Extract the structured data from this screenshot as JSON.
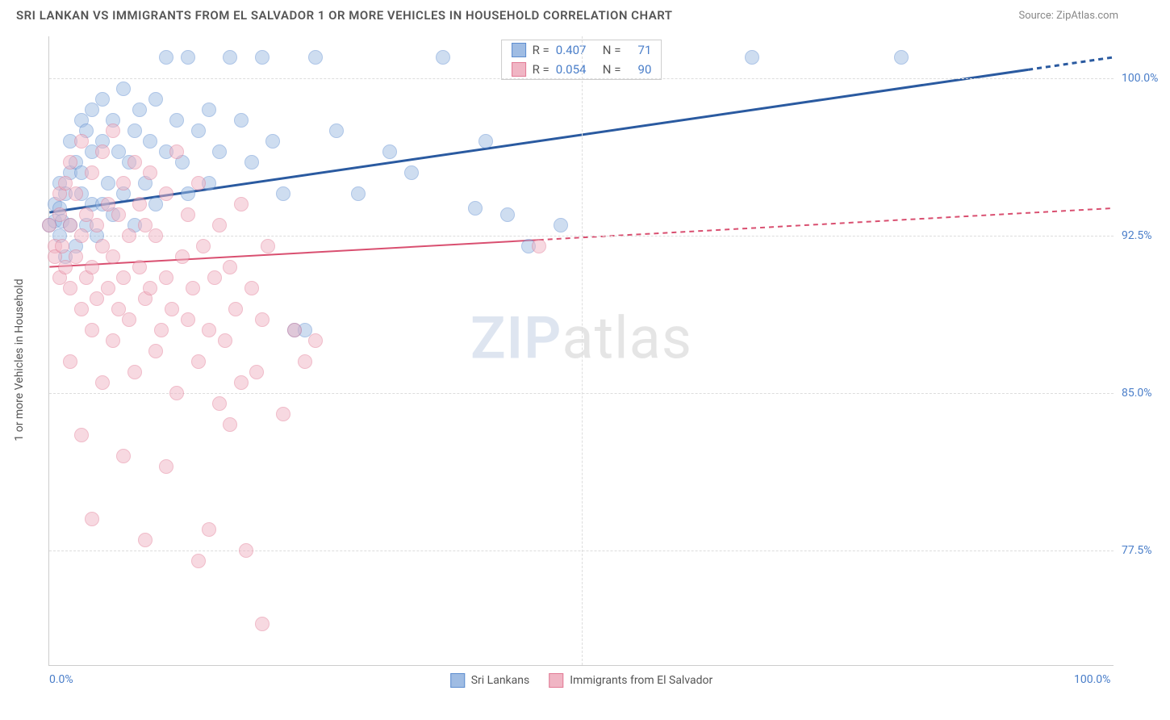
{
  "title": "SRI LANKAN VS IMMIGRANTS FROM EL SALVADOR 1 OR MORE VEHICLES IN HOUSEHOLD CORRELATION CHART",
  "source": "Source: ZipAtlas.com",
  "watermark_a": "ZIP",
  "watermark_b": "atlas",
  "y_axis_title": "1 or more Vehicles in Household",
  "chart": {
    "type": "scatter",
    "xlim": [
      0,
      100
    ],
    "ylim": [
      72,
      102
    ],
    "xticks": [
      {
        "v": 0,
        "label": "0.0%"
      },
      {
        "v": 100,
        "label": "100.0%"
      }
    ],
    "yticks": [
      {
        "v": 77.5,
        "label": "77.5%"
      },
      {
        "v": 85.0,
        "label": "85.0%"
      },
      {
        "v": 92.5,
        "label": "92.5%"
      },
      {
        "v": 100.0,
        "label": "100.0%"
      }
    ],
    "x_gridlines": [
      50
    ],
    "grid_color": "#dddddd",
    "background": "#ffffff",
    "point_radius": 9,
    "point_opacity": 0.5,
    "series": [
      {
        "name": "Sri Lankans",
        "color_fill": "#9fbce3",
        "color_stroke": "#5d8dd0",
        "R": "0.407",
        "N": "71",
        "trend": {
          "x1": 0,
          "y1": 93.6,
          "x2": 100,
          "y2": 101.0,
          "solid_until": 92,
          "stroke": "#2a5aa0",
          "width": 3
        },
        "points": [
          [
            0,
            93.0
          ],
          [
            0.5,
            94.0
          ],
          [
            0.5,
            93.2
          ],
          [
            1,
            95.0
          ],
          [
            1,
            92.5
          ],
          [
            1.0,
            93.8
          ],
          [
            1.2,
            93.2
          ],
          [
            1.5,
            91.5
          ],
          [
            1.5,
            94.5
          ],
          [
            2,
            95.5
          ],
          [
            2,
            93.0
          ],
          [
            2,
            97.0
          ],
          [
            2.5,
            92.0
          ],
          [
            2.5,
            96.0
          ],
          [
            3,
            95.5
          ],
          [
            3,
            94.5
          ],
          [
            3,
            98.0
          ],
          [
            3.5,
            97.5
          ],
          [
            3.5,
            93.0
          ],
          [
            4,
            96.5
          ],
          [
            4,
            98.5
          ],
          [
            4,
            94.0
          ],
          [
            4.5,
            92.5
          ],
          [
            5,
            99.0
          ],
          [
            5,
            94.0
          ],
          [
            5,
            97.0
          ],
          [
            5.5,
            95.0
          ],
          [
            6,
            93.5
          ],
          [
            6,
            98.0
          ],
          [
            6.5,
            96.5
          ],
          [
            7,
            94.5
          ],
          [
            7,
            99.5
          ],
          [
            7.5,
            96.0
          ],
          [
            8,
            93.0
          ],
          [
            8,
            97.5
          ],
          [
            8.5,
            98.5
          ],
          [
            9,
            95.0
          ],
          [
            9.5,
            97.0
          ],
          [
            10,
            99.0
          ],
          [
            10,
            94.0
          ],
          [
            11,
            101.0
          ],
          [
            11,
            96.5
          ],
          [
            12,
            98.0
          ],
          [
            12.5,
            96.0
          ],
          [
            13,
            94.5
          ],
          [
            13,
            101.0
          ],
          [
            14,
            97.5
          ],
          [
            15,
            98.5
          ],
          [
            15,
            95.0
          ],
          [
            16,
            96.5
          ],
          [
            17,
            101.0
          ],
          [
            18,
            98.0
          ],
          [
            19,
            96.0
          ],
          [
            20,
            101.0
          ],
          [
            21,
            97.0
          ],
          [
            22,
            94.5
          ],
          [
            23,
            88.0
          ],
          [
            24,
            88.0
          ],
          [
            25,
            101.0
          ],
          [
            27,
            97.5
          ],
          [
            29,
            94.5
          ],
          [
            32,
            96.5
          ],
          [
            34,
            95.5
          ],
          [
            37,
            101.0
          ],
          [
            40,
            93.8
          ],
          [
            41,
            97.0
          ],
          [
            43,
            93.5
          ],
          [
            45,
            92.0
          ],
          [
            48,
            93.0
          ],
          [
            66,
            101.0
          ],
          [
            80,
            101.0
          ]
        ]
      },
      {
        "name": "Immigrants from El Salvador",
        "color_fill": "#f0b5c4",
        "color_stroke": "#e27a95",
        "R": "0.054",
        "N": "90",
        "trend": {
          "x1": 0,
          "y1": 91.0,
          "x2": 100,
          "y2": 93.8,
          "solid_until": 46,
          "stroke": "#d94f70",
          "width": 2
        },
        "points": [
          [
            0,
            93.0
          ],
          [
            0.5,
            92.0
          ],
          [
            0.5,
            91.5
          ],
          [
            1,
            93.5
          ],
          [
            1,
            90.5
          ],
          [
            1,
            94.5
          ],
          [
            1.2,
            92.0
          ],
          [
            1.5,
            91.0
          ],
          [
            1.5,
            95.0
          ],
          [
            2,
            93.0
          ],
          [
            2,
            90.0
          ],
          [
            2,
            96.0
          ],
          [
            2,
            86.5
          ],
          [
            2.5,
            91.5
          ],
          [
            2.5,
            94.5
          ],
          [
            3,
            92.5
          ],
          [
            3,
            89.0
          ],
          [
            3,
            97.0
          ],
          [
            3,
            83.0
          ],
          [
            3.5,
            90.5
          ],
          [
            3.5,
            93.5
          ],
          [
            4,
            95.5
          ],
          [
            4,
            91.0
          ],
          [
            4,
            88.0
          ],
          [
            4,
            79.0
          ],
          [
            4.5,
            93.0
          ],
          [
            4.5,
            89.5
          ],
          [
            5,
            96.5
          ],
          [
            5,
            92.0
          ],
          [
            5,
            85.5
          ],
          [
            5.5,
            90.0
          ],
          [
            5.5,
            94.0
          ],
          [
            6,
            91.5
          ],
          [
            6,
            87.5
          ],
          [
            6,
            97.5
          ],
          [
            6.5,
            93.5
          ],
          [
            6.5,
            89.0
          ],
          [
            7,
            95.0
          ],
          [
            7,
            82.0
          ],
          [
            7,
            90.5
          ],
          [
            7.5,
            88.5
          ],
          [
            7.5,
            92.5
          ],
          [
            8,
            96.0
          ],
          [
            8,
            86.0
          ],
          [
            8.5,
            91.0
          ],
          [
            8.5,
            94.0
          ],
          [
            9,
            89.5
          ],
          [
            9,
            93.0
          ],
          [
            9,
            78.0
          ],
          [
            9.5,
            90.0
          ],
          [
            9.5,
            95.5
          ],
          [
            10,
            87.0
          ],
          [
            10,
            92.5
          ],
          [
            10.5,
            88.0
          ],
          [
            11,
            94.5
          ],
          [
            11,
            90.5
          ],
          [
            11,
            81.5
          ],
          [
            11.5,
            89.0
          ],
          [
            12,
            96.5
          ],
          [
            12,
            85.0
          ],
          [
            12.5,
            91.5
          ],
          [
            13,
            88.5
          ],
          [
            13,
            93.5
          ],
          [
            13.5,
            90.0
          ],
          [
            14,
            86.5
          ],
          [
            14,
            77.0
          ],
          [
            14,
            95.0
          ],
          [
            14.5,
            92.0
          ],
          [
            15,
            88.0
          ],
          [
            15,
            78.5
          ],
          [
            15.5,
            90.5
          ],
          [
            16,
            84.5
          ],
          [
            16,
            93.0
          ],
          [
            16.5,
            87.5
          ],
          [
            17,
            91.0
          ],
          [
            17,
            83.5
          ],
          [
            17.5,
            89.0
          ],
          [
            18,
            85.5
          ],
          [
            18,
            94.0
          ],
          [
            18.5,
            77.5
          ],
          [
            19,
            90.0
          ],
          [
            19.5,
            86.0
          ],
          [
            20,
            88.5
          ],
          [
            20,
            74.0
          ],
          [
            20.5,
            92.0
          ],
          [
            22,
            84.0
          ],
          [
            23,
            88.0
          ],
          [
            24,
            86.5
          ],
          [
            25,
            87.5
          ],
          [
            46,
            92.0
          ]
        ]
      }
    ],
    "legend_bottom": [
      {
        "label": "Sri Lankans",
        "fill": "#9fbce3",
        "stroke": "#5d8dd0"
      },
      {
        "label": "Immigrants from El Salvador",
        "fill": "#f0b5c4",
        "stroke": "#e27a95"
      }
    ]
  }
}
